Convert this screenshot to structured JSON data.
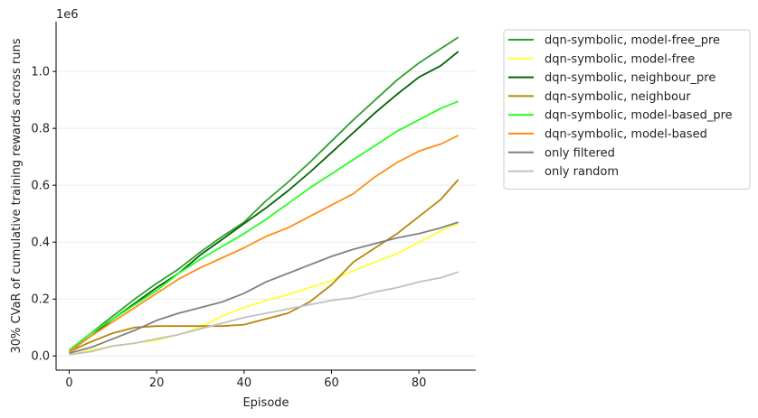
{
  "chart_data": {
    "type": "line",
    "xlabel": "Episode",
    "ylabel": "30% CVaR of cumulative training rewards across runs",
    "y_offset_text": "1e6",
    "xlim": [
      -3,
      93
    ],
    "ylim": [
      -50000,
      1175000
    ],
    "x_ticks": [
      0,
      20,
      40,
      60,
      80
    ],
    "y_ticks": [
      0.0,
      0.2,
      0.4,
      0.6,
      0.8,
      1.0
    ],
    "y_tick_labels": [
      "0.0",
      "0.2",
      "0.4",
      "0.6",
      "0.8",
      "1.0"
    ],
    "y_tick_multiplier": 1000000,
    "grid": "horizontal",
    "legend_position": "outside-right",
    "series": [
      {
        "name": "dqn-symbolic, model-free_pre",
        "color": "#2ca02c",
        "x": [
          0,
          5,
          10,
          15,
          20,
          25,
          30,
          35,
          40,
          45,
          50,
          55,
          60,
          65,
          70,
          75,
          80,
          85,
          89
        ],
        "y": [
          20000,
          80000,
          140000,
          200000,
          255000,
          305000,
          365000,
          420000,
          470000,
          545000,
          610000,
          680000,
          755000,
          830000,
          900000,
          970000,
          1030000,
          1080000,
          1120000
        ]
      },
      {
        "name": "dqn-symbolic, model-free",
        "color": "#ffff33",
        "x": [
          0,
          5,
          10,
          15,
          20,
          25,
          30,
          35,
          40,
          45,
          50,
          55,
          60,
          65,
          70,
          75,
          80,
          85,
          89
        ],
        "y": [
          5000,
          20000,
          35000,
          45000,
          55000,
          75000,
          100000,
          140000,
          170000,
          195000,
          215000,
          240000,
          265000,
          300000,
          330000,
          360000,
          400000,
          440000,
          465000
        ]
      },
      {
        "name": "dqn-symbolic, neighbour_pre",
        "color": "#006400",
        "x": [
          0,
          5,
          10,
          15,
          20,
          25,
          30,
          35,
          40,
          45,
          50,
          55,
          60,
          65,
          70,
          75,
          80,
          85,
          89
        ],
        "y": [
          15000,
          70000,
          130000,
          185000,
          240000,
          290000,
          355000,
          410000,
          465000,
          520000,
          580000,
          645000,
          715000,
          785000,
          855000,
          920000,
          980000,
          1020000,
          1070000
        ]
      },
      {
        "name": "dqn-symbolic, neighbour",
        "color": "#b8860b",
        "x": [
          0,
          5,
          10,
          15,
          20,
          25,
          30,
          35,
          40,
          45,
          50,
          55,
          60,
          65,
          70,
          75,
          80,
          85,
          89
        ],
        "y": [
          15000,
          50000,
          80000,
          100000,
          105000,
          105000,
          105000,
          105000,
          110000,
          130000,
          150000,
          190000,
          250000,
          330000,
          380000,
          430000,
          490000,
          550000,
          620000
        ]
      },
      {
        "name": "dqn-symbolic, model-based_pre",
        "color": "#22ff22",
        "x": [
          0,
          5,
          10,
          15,
          20,
          25,
          30,
          35,
          40,
          45,
          50,
          55,
          60,
          65,
          70,
          75,
          80,
          85,
          89
        ],
        "y": [
          20000,
          80000,
          130000,
          180000,
          230000,
          290000,
          340000,
          385000,
          430000,
          480000,
          535000,
          590000,
          640000,
          690000,
          740000,
          790000,
          830000,
          870000,
          895000
        ]
      },
      {
        "name": "dqn-symbolic, model-based",
        "color": "#ff8c1a",
        "x": [
          0,
          5,
          10,
          15,
          20,
          25,
          30,
          35,
          40,
          45,
          50,
          55,
          60,
          65,
          70,
          75,
          80,
          85,
          89
        ],
        "y": [
          15000,
          70000,
          120000,
          170000,
          220000,
          270000,
          310000,
          345000,
          380000,
          420000,
          450000,
          490000,
          530000,
          570000,
          630000,
          680000,
          720000,
          745000,
          775000
        ]
      },
      {
        "name": "only filtered",
        "color": "#808080",
        "x": [
          0,
          5,
          10,
          15,
          20,
          25,
          30,
          35,
          40,
          45,
          50,
          55,
          60,
          65,
          70,
          75,
          80,
          85,
          89
        ],
        "y": [
          10000,
          30000,
          60000,
          90000,
          125000,
          150000,
          170000,
          190000,
          220000,
          260000,
          290000,
          320000,
          350000,
          375000,
          395000,
          415000,
          430000,
          450000,
          470000
        ]
      },
      {
        "name": "only random",
        "color": "#c0c0c0",
        "x": [
          0,
          5,
          10,
          15,
          20,
          25,
          30,
          35,
          40,
          45,
          50,
          55,
          60,
          65,
          70,
          75,
          80,
          85,
          89
        ],
        "y": [
          5000,
          15000,
          35000,
          45000,
          60000,
          75000,
          95000,
          115000,
          135000,
          150000,
          165000,
          180000,
          195000,
          205000,
          225000,
          240000,
          260000,
          275000,
          295000
        ]
      }
    ]
  }
}
